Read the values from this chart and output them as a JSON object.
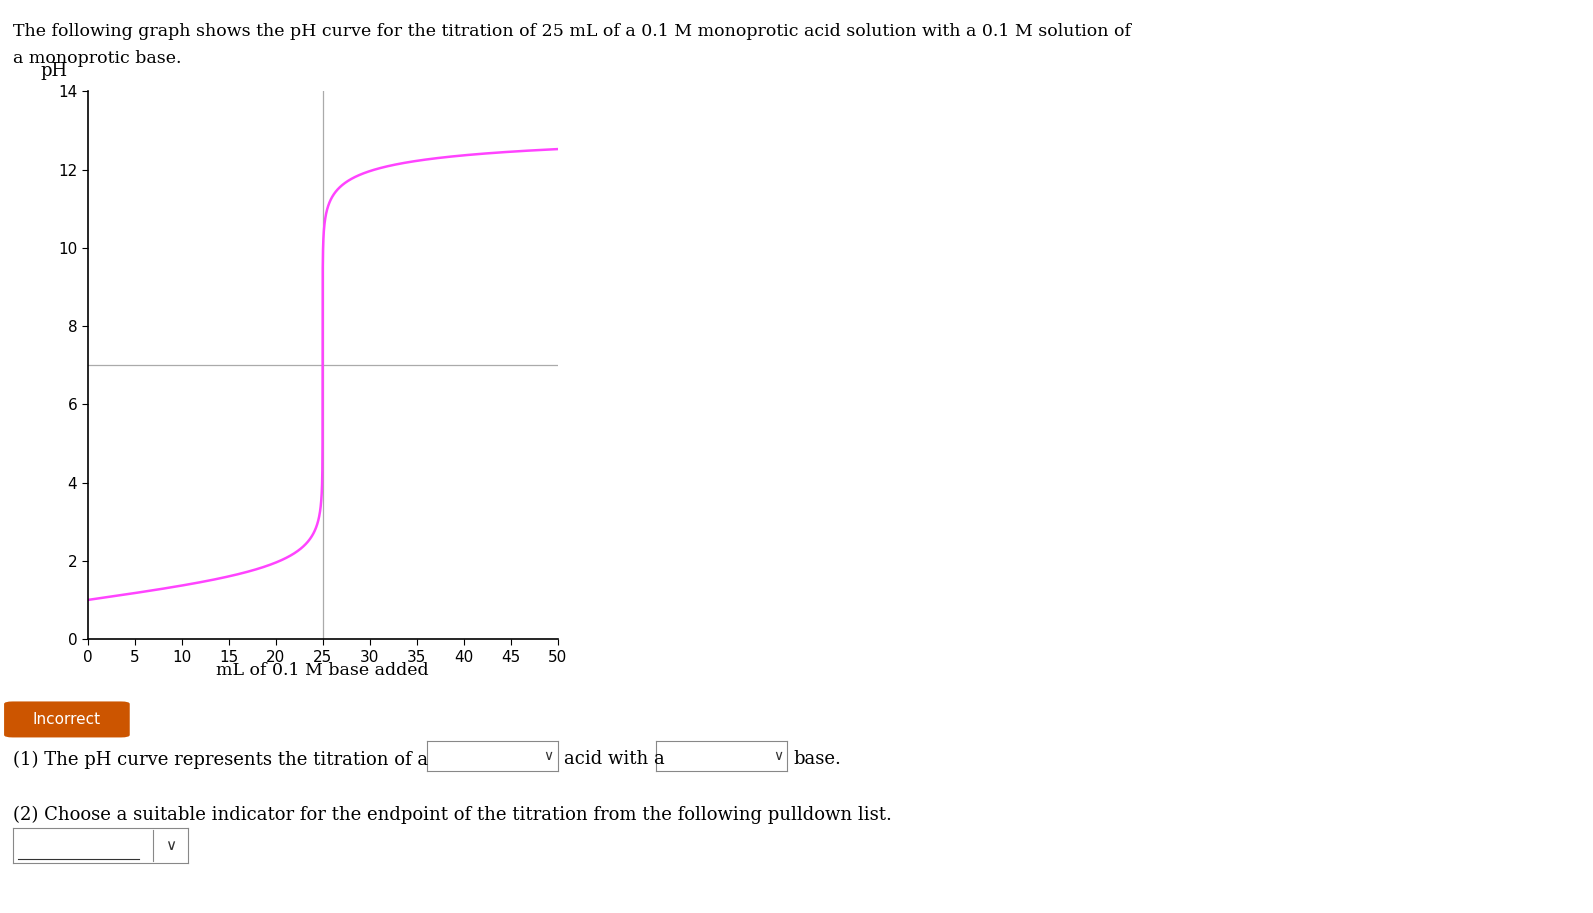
{
  "title_line1": "The following graph shows the pH curve for the titration of 25 mL of a 0.1 M monoprotic acid solution with a 0.1 M solution of",
  "title_line2": "a monoprotic base.",
  "ylabel": "pH",
  "xlabel": "mL of 0.1 M base added",
  "xlim": [
    0,
    50
  ],
  "ylim": [
    0,
    14
  ],
  "xticks": [
    0,
    5,
    10,
    15,
    20,
    25,
    30,
    35,
    40,
    45,
    50
  ],
  "yticks": [
    0,
    2,
    4,
    6,
    8,
    10,
    12,
    14
  ],
  "curve_color": "#ff44ff",
  "hline_y": 7.0,
  "vline_x": 25.0,
  "hline_color": "#aaaaaa",
  "vline_color": "#aaaaaa",
  "acid_conc": 0.1,
  "base_conc": 0.1,
  "acid_vol": 25.0,
  "incorrect_label": "Incorrect",
  "incorrect_bg": "#cc5500",
  "incorrect_text_color": "#ffffff",
  "question1_part1": "(1) The pH curve represents the titration of a",
  "question1_part2": "acid with a",
  "question1_part3": "base.",
  "question2": "(2) Choose a suitable indicator for the endpoint of the titration from the following pulldown list.",
  "fig_bg": "#ffffff",
  "text_color": "#000000"
}
